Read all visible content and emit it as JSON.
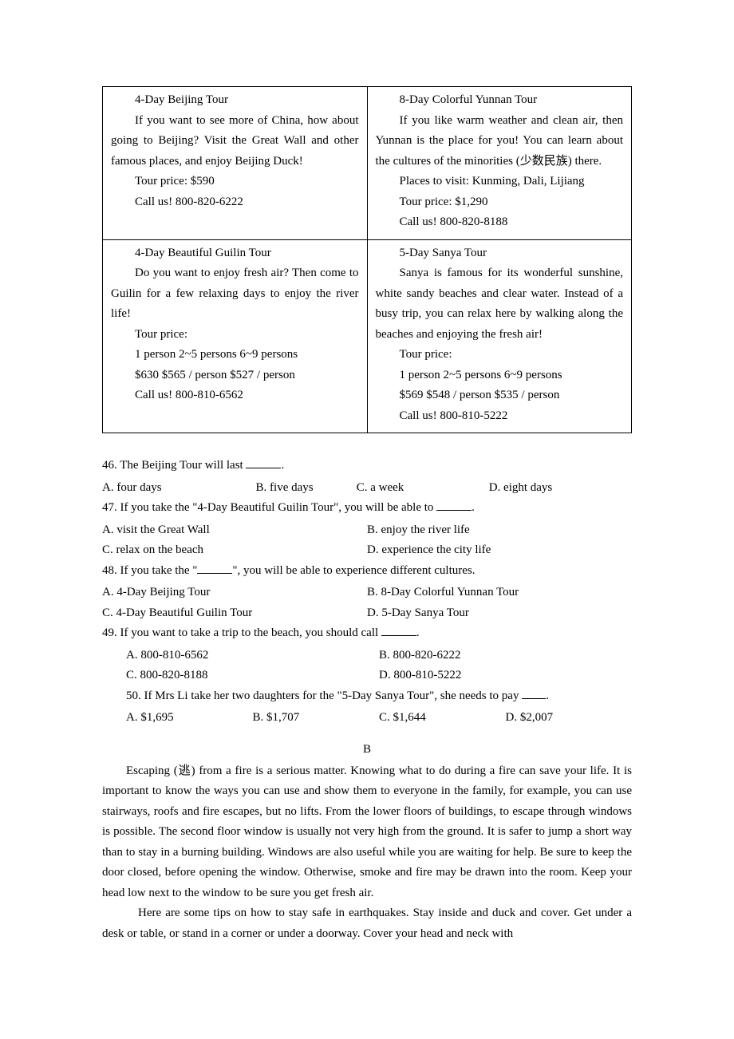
{
  "table": {
    "cells": [
      {
        "lines": [
          {
            "cls": "indent",
            "t": "4-Day Beijing Tour"
          },
          {
            "cls": "indent",
            "t": "If you want to see more of China, how about going to Beijing? Visit the Great Wall and other famous places, and enjoy Beijing Duck!"
          },
          {
            "cls": "indent",
            "t": "Tour price: $590"
          },
          {
            "cls": "indent",
            "t": "Call us! 800-820-6222"
          }
        ]
      },
      {
        "lines": [
          {
            "cls": "indent",
            "t": "8-Day Colorful Yunnan Tour"
          },
          {
            "cls": "indent",
            "t": "If you like warm weather and clean air, then Yunnan is the place for you! You can learn about the cultures of the minorities (少数民族) there."
          },
          {
            "cls": "indent",
            "t": "Places to visit: Kunming, Dali, Lijiang"
          },
          {
            "cls": "indent",
            "t": "Tour price: $1,290"
          },
          {
            "cls": "indent",
            "t": "Call us! 800-820-8188"
          }
        ]
      },
      {
        "lines": [
          {
            "cls": "indent",
            "t": "4-Day Beautiful Guilin Tour"
          },
          {
            "cls": "indent",
            "t": "Do you want to enjoy fresh air? Then come to Guilin for a few relaxing days to enjoy the river life!"
          },
          {
            "cls": "indent",
            "t": "Tour price:"
          },
          {
            "cls": "indent",
            "t": "1 person  2~5 persons 6~9 persons"
          },
          {
            "cls": "indent",
            "t": "$630 $565 / person $527 / person"
          },
          {
            "cls": "indent",
            "t": "Call us! 800-810-6562"
          }
        ]
      },
      {
        "lines": [
          {
            "cls": "indent",
            "t": "5-Day Sanya Tour"
          },
          {
            "cls": "indent",
            "t": "Sanya is famous for its wonderful sunshine, white sandy beaches and clear water. Instead of a busy trip, you can relax here by walking along the beaches and enjoying the fresh air!"
          },
          {
            "cls": "indent",
            "t": "Tour price:"
          },
          {
            "cls": "indent",
            "t": "1 person  2~5 persons 6~9 persons"
          },
          {
            "cls": "indent",
            "t": "$569 $548 / person $535 / person"
          },
          {
            "cls": "indent",
            "t": "Call us! 800-810-5222"
          }
        ]
      }
    ]
  },
  "q46": {
    "stem_pre": "46. The Beijing Tour will last ",
    "stem_post": ".",
    "a": "A. four days",
    "b": "B. five days",
    "c": "C. a week",
    "d": "D. eight days"
  },
  "q47": {
    "stem_pre": "47. If you take the \"4-Day Beautiful Guilin Tour\", you will be able to ",
    "stem_post": ".",
    "a": "A. visit the Great Wall",
    "b": "B. enjoy the river life",
    "c": "C. relax on the beach",
    "d": "D. experience the city life"
  },
  "q48": {
    "stem_pre": "48. If you take the \"",
    "stem_post": "\", you will be able to experience different cultures.",
    "a": "A. 4-Day Beijing Tour",
    "b": "B. 8-Day Colorful Yunnan Tour",
    "c": "C. 4-Day Beautiful Guilin Tour",
    "d": "D. 5-Day Sanya Tour"
  },
  "q49": {
    "stem_pre": "49. If you want to take a trip to the beach, you should call ",
    "stem_post": ".",
    "a": "A. 800-810-6562",
    "b": "B. 800-820-6222",
    "c": "C. 800-820-8188",
    "d": "D. 800-810-5222"
  },
  "q50": {
    "stem_pre": "50. If Mrs Li take her two daughters for the \"5-Day Sanya Tour\", she  needs to pay ",
    "stem_post": ".",
    "a": "A. $1,695",
    "b": "B. $1,707",
    "c": "C. $1,644",
    "d": "D. $2,007"
  },
  "sectionB": "B",
  "para1": "Escaping (逃) from a fire is a serious matter. Knowing what to do during a fire can save your life. It is important to know the ways you can use and show them to everyone in the family, for example, you can use stairways, roofs and fire escapes, but no lifts. From the lower floors of buildings, to escape through windows is possible. The second floor window is usually not very high from the ground. It is safer to jump a short way than to stay in a burning building. Windows are also useful while you are waiting for help. Be sure to keep the door closed, before opening the window. Otherwise, smoke and fire may be drawn into the room. Keep your head low next to the window to be sure you get fresh air.",
  "para2": "Here are some tips on how to stay safe in earthquakes. Stay inside and duck and cover. Get under a desk or table, or stand in a corner or under a doorway. Cover your head and neck with"
}
